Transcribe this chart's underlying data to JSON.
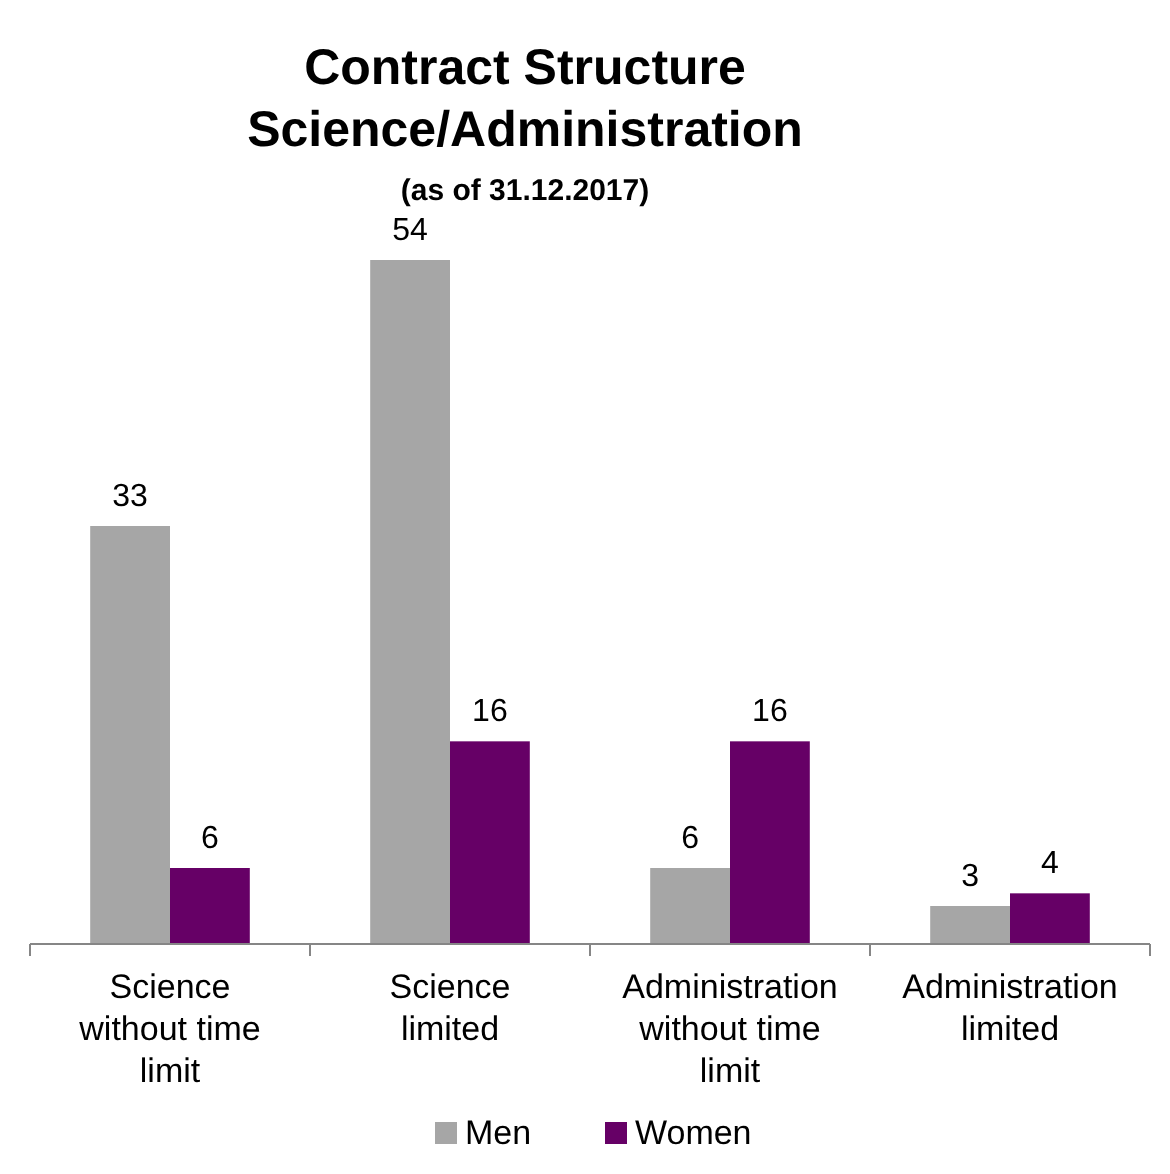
{
  "chart_data": {
    "type": "bar",
    "title": "Contract Structure\nScience/Administration",
    "subtitle": "(as of 31.12.2017)",
    "categories": [
      "Science without time limit",
      "Science limited",
      "Administration without time limit",
      "Administration limited"
    ],
    "series": [
      {
        "name": "Men",
        "color": "#a6a6a6",
        "values": [
          33,
          54,
          6,
          3
        ]
      },
      {
        "name": "Women",
        "color": "#660066",
        "values": [
          6,
          16,
          16,
          4
        ]
      }
    ],
    "data_labels": true,
    "legend": "bottom"
  }
}
